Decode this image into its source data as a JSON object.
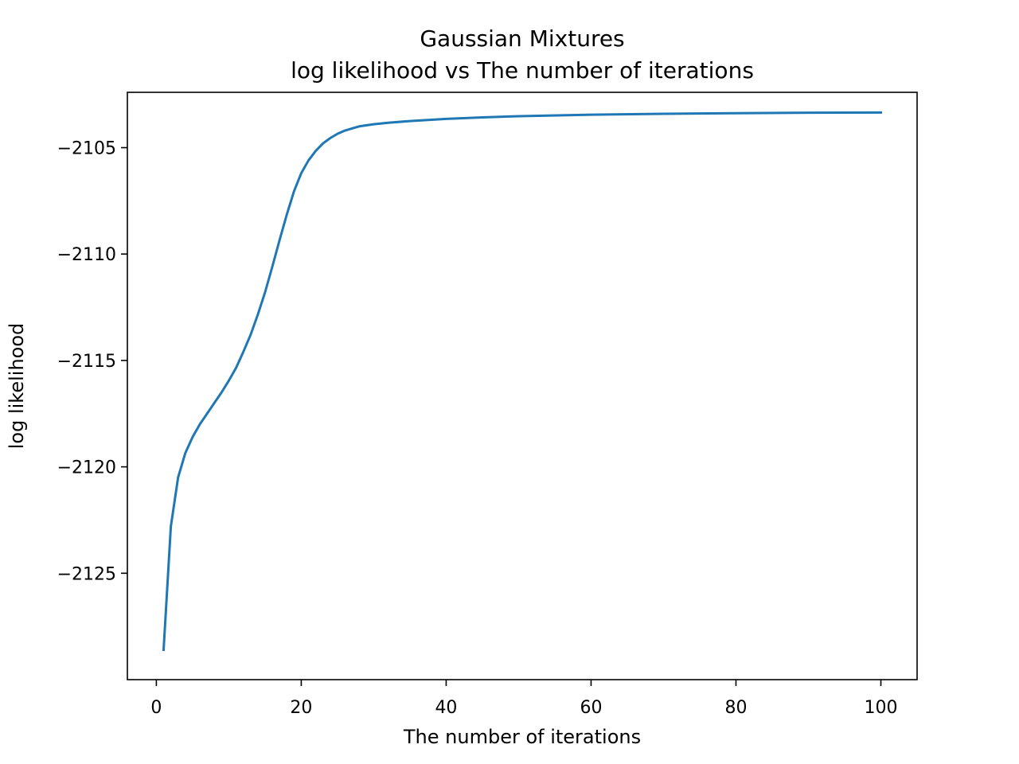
{
  "chart_data": {
    "type": "line",
    "title": "Gaussian Mixtures",
    "subtitle": "log likelihood vs The number of iterations",
    "xlabel": "The number of iterations",
    "ylabel": "log likelihood",
    "xlim": [
      -4.0,
      105.0
    ],
    "ylim": [
      -2130.0,
      -2102.4
    ],
    "xticks": [
      0,
      20,
      40,
      60,
      80,
      100
    ],
    "yticks": [
      -2125,
      -2120,
      -2115,
      -2110,
      -2105
    ],
    "grid": false,
    "legend": "none",
    "series": [
      {
        "color": "#1f77b4",
        "points": [
          [
            1,
            -2128.6
          ],
          [
            2,
            -2122.8
          ],
          [
            3,
            -2120.5
          ],
          [
            4,
            -2119.35
          ],
          [
            5,
            -2118.6
          ],
          [
            6,
            -2118.0
          ],
          [
            7,
            -2117.5
          ],
          [
            8,
            -2117.0
          ],
          [
            9,
            -2116.5
          ],
          [
            10,
            -2115.95
          ],
          [
            11,
            -2115.35
          ],
          [
            12,
            -2114.6
          ],
          [
            13,
            -2113.8
          ],
          [
            14,
            -2112.85
          ],
          [
            15,
            -2111.8
          ],
          [
            16,
            -2110.6
          ],
          [
            17,
            -2109.35
          ],
          [
            18,
            -2108.15
          ],
          [
            19,
            -2107.05
          ],
          [
            20,
            -2106.2
          ],
          [
            21,
            -2105.6
          ],
          [
            22,
            -2105.15
          ],
          [
            23,
            -2104.8
          ],
          [
            24,
            -2104.55
          ],
          [
            25,
            -2104.35
          ],
          [
            26,
            -2104.2
          ],
          [
            27,
            -2104.1
          ],
          [
            28,
            -2104.0
          ],
          [
            30,
            -2103.9
          ],
          [
            32,
            -2103.83
          ],
          [
            35,
            -2103.75
          ],
          [
            40,
            -2103.65
          ],
          [
            45,
            -2103.58
          ],
          [
            50,
            -2103.52
          ],
          [
            60,
            -2103.45
          ],
          [
            70,
            -2103.41
          ],
          [
            80,
            -2103.38
          ],
          [
            90,
            -2103.36
          ],
          [
            100,
            -2103.35
          ]
        ]
      }
    ]
  }
}
